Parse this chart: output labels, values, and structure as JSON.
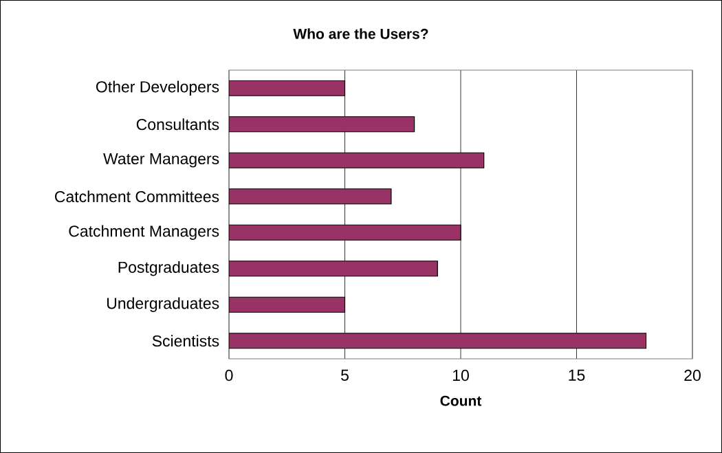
{
  "chart_data": {
    "type": "bar",
    "orientation": "horizontal",
    "title": "Who are the Users?",
    "xlabel": "Count",
    "categories": [
      "Other Developers",
      "Consultants",
      "Water Managers",
      "Catchment Committees",
      "Catchment Managers",
      "Postgraduates",
      "Undergraduates",
      "Scientists"
    ],
    "values": [
      5,
      8,
      11,
      7,
      10,
      9,
      5,
      18
    ],
    "color": "#993366",
    "xlim": [
      0,
      20
    ],
    "xticks": [
      0,
      5,
      10,
      15,
      20
    ],
    "grid": "x"
  }
}
